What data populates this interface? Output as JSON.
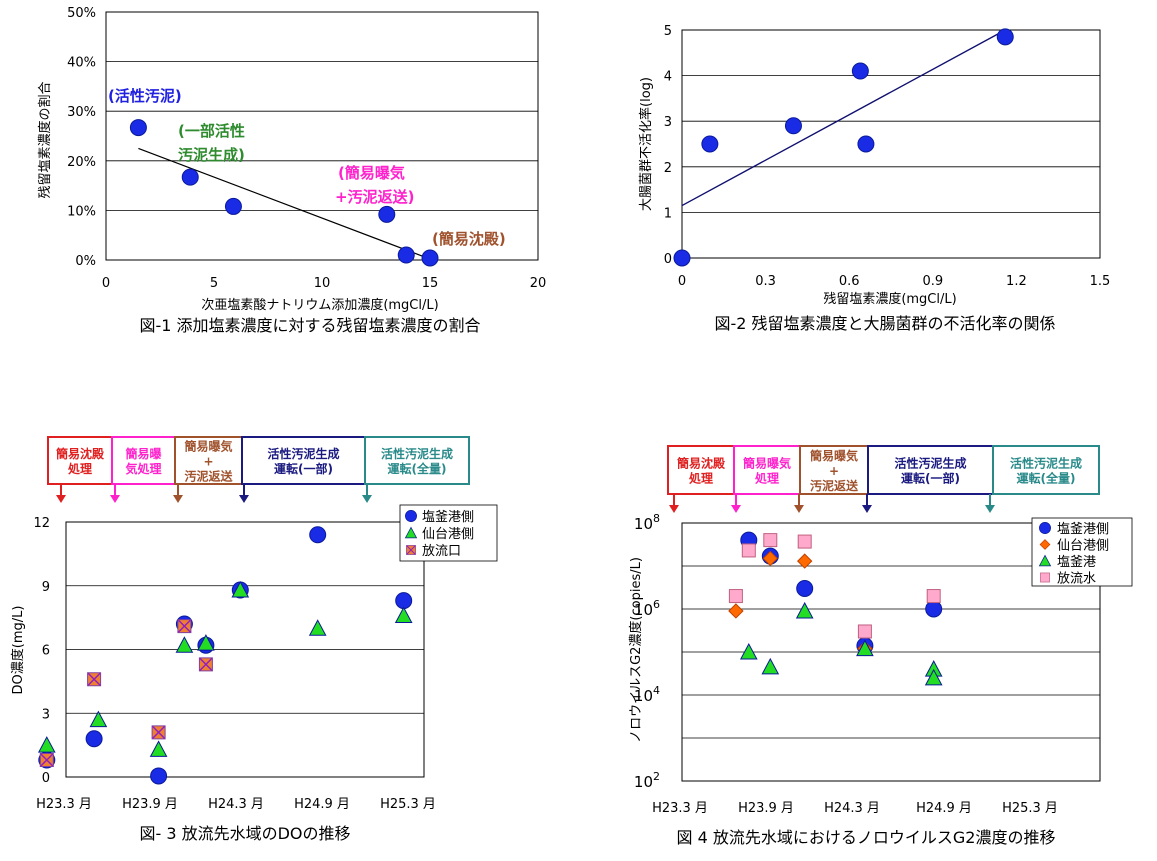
{
  "charts": {
    "fig1": {
      "caption": "図-1 添加塩素濃度に対する残留塩素濃度の割合",
      "xlabel": "次亜塩素酸ナトリウム添加濃度(mgCl/L)",
      "ylabel": "残留塩素濃度の割合",
      "xticks": [
        "0",
        "5",
        "10",
        "15",
        "20"
      ],
      "yticks": [
        "0%",
        "10%",
        "20%",
        "30%",
        "40%",
        "50%"
      ],
      "annotations": [
        {
          "text": "(活性汚泥)",
          "color": "#2020e0"
        },
        {
          "text": "(一部活性",
          "color": "#2e8b2e"
        },
        {
          "text": "汚泥生成)",
          "color": "#2e8b2e"
        },
        {
          "text": "(簡易曝気",
          "color": "#ff22cc"
        },
        {
          "text": "+汚泥返送)",
          "color": "#ff22cc"
        },
        {
          "text": "(簡易沈殿)",
          "color": "#a0522d"
        }
      ]
    },
    "fig2": {
      "caption": "図-2 残留塩素濃度と大腸菌群の不活化率の関係",
      "xlabel": "残留塩素濃度(mgCl/L)",
      "ylabel": "大腸菌群不活化率(log)",
      "xticks": [
        "0",
        "0.3",
        "0.6",
        "0.9",
        "1.2",
        "1.5"
      ],
      "yticks": [
        "0",
        "1",
        "2",
        "3",
        "4",
        "5"
      ]
    },
    "fig3": {
      "caption": "図- 3 放流先水域のDOの推移",
      "ylabel": "DO濃度(mg/L)",
      "xticks": [
        "H23.3 月",
        "H23.9 月",
        "H24.3 月",
        "H24.9 月",
        "H25.3 月"
      ],
      "yticks": [
        "0",
        "3",
        "6",
        "9",
        "12"
      ],
      "legend": [
        "塩釜港側",
        "仙台港側",
        "放流口"
      ],
      "phases": [
        {
          "l1": "簡易沈殿",
          "l2": "処理",
          "color": "#e02020"
        },
        {
          "l1": "簡易曝",
          "l2": "気処理",
          "color": "#ff22cc"
        },
        {
          "l1": "簡易曝気",
          "l2": "+",
          "l3": "汚泥返送",
          "color": "#a0522d"
        },
        {
          "l1": "活性汚泥生成",
          "l2": "運転(一部)",
          "color": "#1a1a80"
        },
        {
          "l1": "活性汚泥生成",
          "l2": "運転(全量)",
          "color": "#2a8a8a"
        }
      ]
    },
    "fig4": {
      "caption": "図 4 放流先水域におけるノロウイルスG2濃度の推移",
      "ylabel": "ノロウイルスG2濃度(copies/L)",
      "xticks": [
        "H23.3 月",
        "H23.9 月",
        "H24.3 月",
        "H24.9 月",
        "H25.3 月"
      ],
      "yticks": [
        {
          "b": "10",
          "e": "2"
        },
        {
          "b": "10",
          "e": "4"
        },
        {
          "b": "10",
          "e": "6"
        },
        {
          "b": "10",
          "e": "8"
        }
      ],
      "legend": [
        "塩釜港側",
        "仙台港側",
        "塩釜港",
        "放流水"
      ],
      "phases": [
        {
          "l1": "簡易沈殿",
          "l2": "処理",
          "color": "#e02020"
        },
        {
          "l1": "簡易曝気",
          "l2": "処理",
          "color": "#ff22cc"
        },
        {
          "l1": "簡易曝気",
          "l2": "+",
          "l3": "汚泥返送",
          "color": "#a0522d"
        },
        {
          "l1": "活性汚泥生成",
          "l2": "運転(一部)",
          "color": "#1a1a80"
        },
        {
          "l1": "活性汚泥生成",
          "l2": "運転(全量)",
          "color": "#2a8a8a"
        }
      ]
    }
  },
  "chart_data": [
    {
      "type": "scatter",
      "xlim": [
        0,
        20
      ],
      "ylim": [
        0,
        50
      ],
      "series": [
        {
          "x": [
            1.5,
            3.9,
            5.9,
            13.0,
            13.9,
            15.0
          ],
          "y": [
            26.7,
            16.7,
            10.8,
            9.2,
            1.0,
            0.4
          ]
        }
      ],
      "trendline": {
        "x": [
          1.5,
          15.0
        ],
        "y": [
          22.5,
          0.2
        ]
      },
      "grid": true,
      "color": "#1a2be6"
    },
    {
      "type": "scatter",
      "xlim": [
        0,
        1.5
      ],
      "ylim": [
        0,
        5
      ],
      "series": [
        {
          "x": [
            0.0,
            0.1,
            0.4,
            0.64,
            0.66,
            1.16
          ],
          "y": [
            0.0,
            2.5,
            2.9,
            4.1,
            2.5,
            4.85
          ]
        }
      ],
      "trendline": {
        "x": [
          0.0,
          1.16
        ],
        "y": [
          1.15,
          5.0
        ]
      },
      "grid": true,
      "color": "#1a2be6"
    },
    {
      "type": "scatter",
      "x_axis": "time",
      "ylim": [
        0,
        12
      ],
      "legend_position": "top-right",
      "series": [
        {
          "name": "塩釜港側",
          "marker": "circle",
          "color": "#1a2be6",
          "x": [
            0.8,
            1.35,
            2.1,
            2.4,
            2.65,
            3.05,
            3.95,
            4.95
          ],
          "y": [
            0.8,
            1.8,
            0.05,
            7.2,
            6.2,
            8.8,
            11.4,
            8.3
          ]
        },
        {
          "name": "仙台港側",
          "marker": "triangle",
          "color": "#22dd22",
          "x": [
            0.8,
            1.4,
            2.1,
            2.4,
            2.65,
            3.05,
            3.95,
            4.95
          ],
          "y": [
            1.5,
            2.7,
            1.3,
            6.2,
            6.3,
            8.8,
            7.0,
            7.6
          ]
        },
        {
          "name": "放流口",
          "marker": "x-square",
          "color": "#f08030",
          "x": [
            0.8,
            1.35,
            2.1,
            2.4,
            2.65
          ],
          "y": [
            0.8,
            4.6,
            2.1,
            7.1,
            5.3
          ]
        }
      ]
    },
    {
      "type": "scatter",
      "x_axis": "time",
      "y_scale": "log",
      "ylim": [
        100,
        100000000
      ],
      "legend_position": "top-right",
      "series": [
        {
          "name": "塩釜港側",
          "marker": "circle",
          "color": "#1a2be6",
          "x": [
            1.8,
            2.05,
            2.45,
            3.15,
            3.95
          ],
          "y": [
            40000000,
            17000000,
            3000000,
            140000,
            1000000
          ]
        },
        {
          "name": "仙台港側",
          "marker": "diamond",
          "color": "#ff6a00",
          "x": [
            1.65,
            2.05,
            2.45,
            3.15
          ],
          "y": [
            900000,
            15000000,
            13000000,
            120000
          ]
        },
        {
          "name": "塩釜港",
          "marker": "triangle",
          "color": "#22dd22",
          "x": [
            1.8,
            2.05,
            2.45,
            3.15,
            3.95,
            3.95
          ],
          "y": [
            100000,
            45000,
            900000,
            120000,
            40000,
            25000
          ]
        },
        {
          "name": "放流水",
          "marker": "square",
          "color": "#ffaacc",
          "x": [
            1.65,
            1.8,
            2.05,
            2.45,
            3.15,
            3.95
          ],
          "y": [
            2000000,
            23000000,
            40000000,
            37000000,
            300000,
            2000000
          ]
        }
      ]
    }
  ]
}
